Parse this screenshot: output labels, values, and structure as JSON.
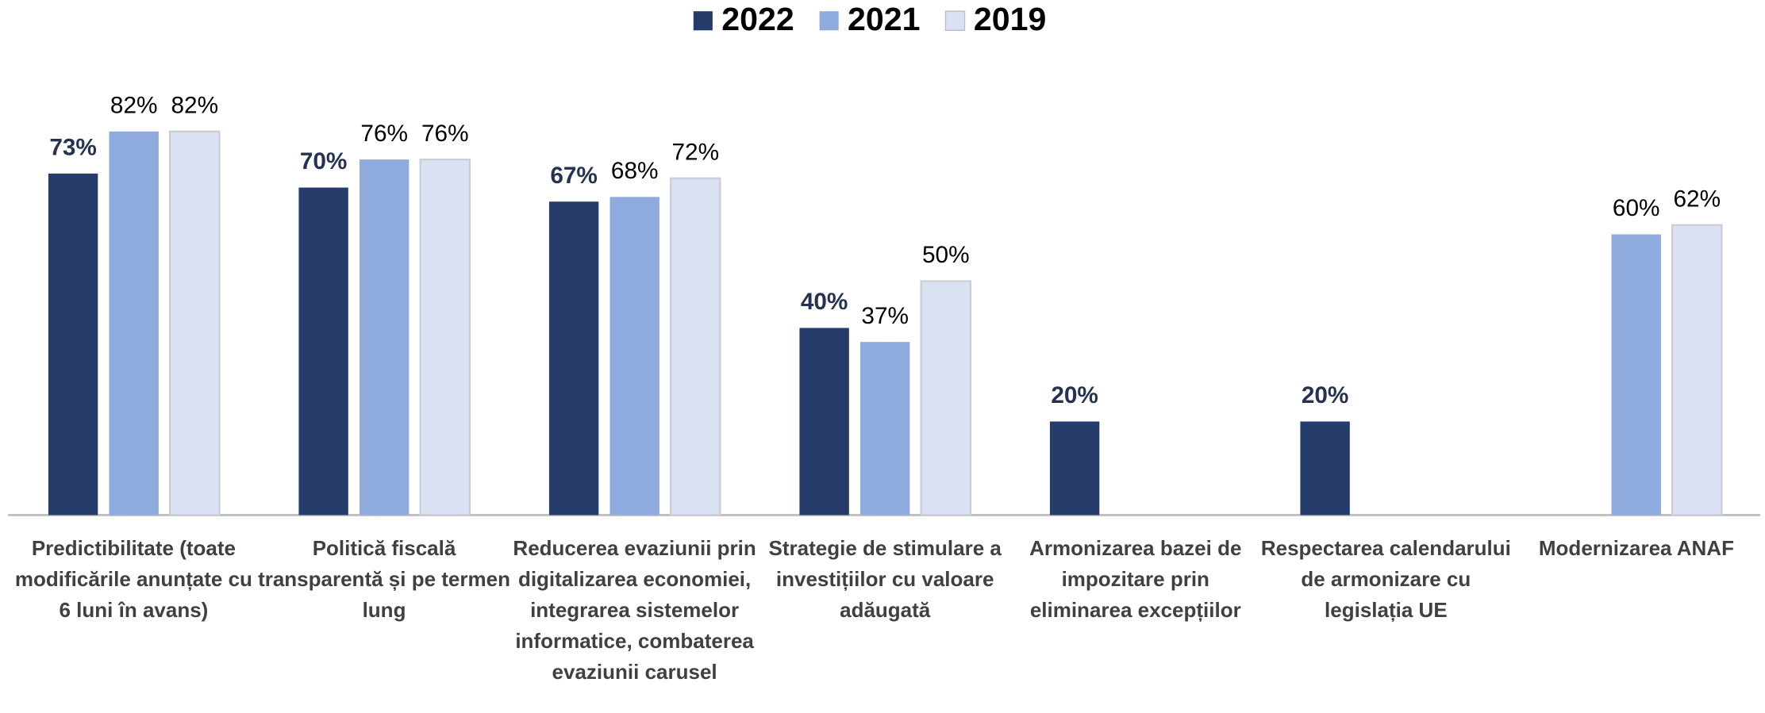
{
  "chart_data": {
    "type": "bar",
    "categories": [
      "Predictibilitate (toate modificările anunțate cu 6 luni în avans)",
      "Politică fiscală transparentă și pe termen lung",
      "Reducerea evaziunii prin digitalizarea economiei, integrarea sistemelor informatice, combaterea evaziunii carusel",
      "Strategie de stimulare a investițiilor cu valoare adăugată",
      "Armonizarea bazei de impozitare prin eliminarea excepțiilor",
      "Respectarea calendarului de armonizare cu legislația UE",
      "Modernizarea ANAF"
    ],
    "series": [
      {
        "name": "2022",
        "color": "#253c6b",
        "values": [
          73,
          70,
          67,
          40,
          20,
          20,
          null
        ],
        "value_labels": [
          "73%",
          "70%",
          "67%",
          "40%",
          "20%",
          "20%",
          null
        ]
      },
      {
        "name": "2021",
        "color": "#8faadc",
        "values": [
          82,
          76,
          68,
          37,
          null,
          null,
          60
        ],
        "value_labels": [
          "82%",
          "76%",
          "68%",
          "37%",
          null,
          null,
          "60%"
        ]
      },
      {
        "name": "2019",
        "color": "#d9e1f2",
        "values": [
          82,
          76,
          72,
          50,
          null,
          null,
          62
        ],
        "value_labels": [
          "82%",
          "76%",
          "72%",
          "50%",
          null,
          null,
          "62%"
        ]
      }
    ],
    "ylim": [
      0,
      100
    ],
    "legend": "top"
  }
}
